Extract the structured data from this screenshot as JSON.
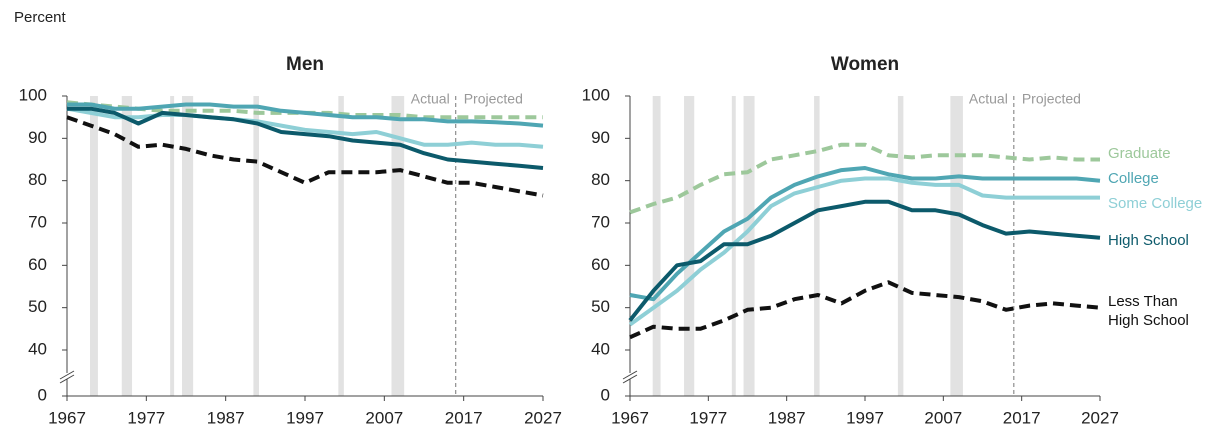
{
  "page_label": "Percent",
  "chart_data": [
    {
      "type": "line",
      "title": "Men",
      "x": [
        1967,
        1970,
        1973,
        1976,
        1979,
        1982,
        1985,
        1988,
        1991,
        1994,
        1997,
        2000,
        2003,
        2006,
        2009,
        2012,
        2015,
        2018,
        2021,
        2024,
        2027
      ],
      "xlim": [
        1967,
        2027
      ],
      "xticks": [
        1967,
        1977,
        1987,
        1997,
        2007,
        2017,
        2027
      ],
      "ylim": [
        0,
        100
      ],
      "yticks": [
        0,
        40,
        50,
        60,
        70,
        80,
        90,
        100
      ],
      "axis_break": [
        0,
        40
      ],
      "shaded_spans": [
        [
          1969.9,
          1970.9
        ],
        [
          1973.9,
          1975.2
        ],
        [
          1980.0,
          1980.5
        ],
        [
          1981.5,
          1982.9
        ],
        [
          1990.5,
          1991.2
        ],
        [
          2001.2,
          2001.9
        ],
        [
          2007.9,
          2009.5
        ]
      ],
      "projection_start": 2016,
      "annotations": [
        "Actual",
        "Projected"
      ],
      "series": [
        {
          "color": "#9dc89b",
          "dashed": true,
          "values": [
            98.5,
            98,
            97.5,
            97,
            96.5,
            96.5,
            96.5,
            96.5,
            96,
            96,
            96,
            96,
            95.5,
            95.5,
            95.5,
            95,
            95,
            95,
            95,
            95,
            95
          ]
        },
        {
          "color": "#4fa6b3",
          "dashed": false,
          "values": [
            98,
            98,
            97,
            97,
            97.5,
            98,
            98,
            97.5,
            97.5,
            96.5,
            96,
            95.5,
            95,
            95,
            94.5,
            94.5,
            94,
            94,
            93.8,
            93.5,
            93
          ]
        },
        {
          "color": "#8ecfd6",
          "dashed": false,
          "values": [
            97,
            96,
            95,
            95,
            95.5,
            95.5,
            95,
            94.5,
            94,
            93,
            92,
            91.5,
            91,
            91.5,
            90,
            88.5,
            88.5,
            89,
            88.5,
            88.5,
            88
          ]
        },
        {
          "color": "#0c5a6b",
          "dashed": false,
          "values": [
            97,
            97,
            96,
            93.5,
            96,
            95.5,
            95,
            94.5,
            93.5,
            91.5,
            91,
            90.5,
            89.5,
            89,
            88.5,
            86.5,
            85,
            84.5,
            84,
            83.5,
            83
          ]
        },
        {
          "color": "#111111",
          "dashed": true,
          "values": [
            95,
            93,
            91,
            88,
            88.5,
            87.5,
            86,
            85,
            84.5,
            82,
            79.5,
            82,
            82,
            82,
            82.5,
            81,
            79.5,
            79.5,
            78.5,
            77.5,
            76.5
          ]
        }
      ]
    },
    {
      "type": "line",
      "title": "Women",
      "x": [
        1967,
        1970,
        1973,
        1976,
        1979,
        1982,
        1985,
        1988,
        1991,
        1994,
        1997,
        2000,
        2003,
        2006,
        2009,
        2012,
        2015,
        2018,
        2021,
        2024,
        2027
      ],
      "xlim": [
        1967,
        2027
      ],
      "xticks": [
        1967,
        1977,
        1987,
        1997,
        2007,
        2017,
        2027
      ],
      "ylim": [
        0,
        100
      ],
      "yticks": [
        0,
        40,
        50,
        60,
        70,
        80,
        90,
        100
      ],
      "axis_break": [
        0,
        40
      ],
      "shaded_spans": [
        [
          1969.9,
          1970.9
        ],
        [
          1973.9,
          1975.2
        ],
        [
          1980.0,
          1980.5
        ],
        [
          1981.5,
          1982.9
        ],
        [
          1990.5,
          1991.2
        ],
        [
          2001.2,
          2001.9
        ],
        [
          2007.9,
          2009.5
        ]
      ],
      "projection_start": 2016,
      "annotations": [
        "Actual",
        "Projected"
      ],
      "series": [
        {
          "name": "Graduate",
          "color": "#9dc89b",
          "dashed": true,
          "values": [
            72.5,
            74.5,
            76,
            79,
            81.5,
            82,
            85,
            86,
            87,
            88.5,
            88.5,
            86,
            85.5,
            86,
            86,
            86,
            85.5,
            85,
            85.5,
            85,
            85
          ]
        },
        {
          "name": "College",
          "color": "#4fa6b3",
          "dashed": false,
          "values": [
            53,
            52,
            58,
            63,
            68,
            71,
            76,
            79,
            81,
            82.5,
            83,
            81.5,
            80.5,
            80.5,
            81,
            80.5,
            80.5,
            80.5,
            80.5,
            80.5,
            80
          ]
        },
        {
          "name": "Some College",
          "color": "#8ecfd6",
          "dashed": false,
          "values": [
            46,
            50,
            54,
            59,
            63,
            68,
            74,
            77,
            78.5,
            80,
            80.5,
            80.5,
            79.5,
            79,
            79,
            76.5,
            76,
            76,
            76,
            76,
            76
          ]
        },
        {
          "name": "High School",
          "color": "#0c5a6b",
          "dashed": false,
          "values": [
            47,
            54,
            60,
            61,
            65,
            65,
            67,
            70,
            73,
            74,
            75,
            75,
            73,
            73,
            72,
            69.5,
            67.5,
            68,
            67.5,
            67,
            66.5
          ]
        },
        {
          "name": "Less Than High School",
          "color": "#111111",
          "dashed": true,
          "values": [
            43,
            45.5,
            45,
            45,
            47,
            49.5,
            50,
            52,
            53,
            51,
            54,
            56,
            53.5,
            53,
            52.5,
            51.5,
            49.5,
            50.5,
            51,
            50.5,
            50
          ]
        }
      ]
    }
  ]
}
